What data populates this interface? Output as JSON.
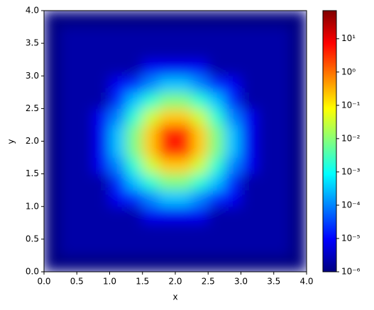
{
  "chart_data": {
    "type": "heatmap",
    "x_label": "x",
    "y_label": "y",
    "colormap": "jet",
    "color_scale": "log",
    "xlim": [
      0,
      4
    ],
    "ylim": [
      0,
      4
    ],
    "xticks": [
      {
        "value": 0,
        "label": "0.0"
      },
      0.5,
      {
        "value": 1,
        "label": "1.0"
      },
      1.5,
      {
        "value": 2,
        "label": "2.0"
      },
      2.5,
      {
        "value": 3,
        "label": "3.0"
      },
      3.5,
      {
        "value": 4,
        "label": "4.0"
      }
    ],
    "yticks": [
      {
        "value": 0,
        "label": "0.0"
      },
      0.5,
      {
        "value": 1,
        "label": "1.0"
      },
      1.5,
      {
        "value": 2,
        "label": "2.0"
      },
      2.5,
      {
        "value": 3,
        "label": "3.0"
      },
      3.5,
      {
        "value": 4,
        "label": "4.0"
      }
    ],
    "x": [
      0.125,
      0.375,
      0.625,
      0.875,
      1.125,
      1.375,
      1.625,
      1.875,
      2.125,
      2.375,
      2.625,
      2.875,
      3.125,
      3.375,
      3.625,
      3.875
    ],
    "y": [
      0.125,
      0.375,
      0.625,
      0.875,
      1.125,
      1.375,
      1.625,
      1.875,
      2.125,
      2.375,
      2.625,
      2.875,
      3.125,
      3.375,
      3.625,
      3.875
    ],
    "z": [
      [
        1e-06,
        1e-06,
        1e-06,
        1e-06,
        1e-06,
        1e-06,
        1e-06,
        1e-06,
        1e-06,
        1e-06,
        1e-06,
        1e-06,
        1e-06,
        1e-06,
        1e-06,
        1e-06
      ],
      [
        1e-06,
        2e-06,
        2e-06,
        2e-06,
        2e-06,
        2e-06,
        2e-06,
        2e-06,
        2e-06,
        2e-06,
        2e-06,
        2e-06,
        2e-06,
        2e-06,
        2e-06,
        1e-06
      ],
      [
        1e-06,
        2e-06,
        2e-06,
        2e-06,
        2e-06,
        2e-06,
        2e-06,
        2e-06,
        2e-06,
        2e-06,
        2e-06,
        2e-06,
        2e-06,
        2e-06,
        2e-06,
        1e-06
      ],
      [
        1e-06,
        2e-06,
        2e-06,
        2e-06,
        2e-06,
        2e-06,
        8e-06,
        8e-06,
        8e-06,
        8e-06,
        2e-06,
        2e-06,
        2e-06,
        2e-06,
        2e-06,
        1e-06
      ],
      [
        1e-06,
        2e-06,
        2e-06,
        2e-06,
        8e-06,
        2e-05,
        0.0001,
        0.0003,
        0.0003,
        0.0001,
        2e-05,
        8e-06,
        2e-06,
        2e-06,
        2e-06,
        1e-06
      ],
      [
        1e-06,
        2e-06,
        2e-06,
        2e-06,
        2e-05,
        0.0003,
        0.002,
        0.008,
        0.008,
        0.002,
        0.0003,
        2e-05,
        2e-06,
        2e-06,
        2e-06,
        1e-06
      ],
      [
        1e-06,
        2e-06,
        2e-06,
        8e-06,
        0.0001,
        0.002,
        0.03,
        0.2,
        0.2,
        0.03,
        0.002,
        0.0001,
        8e-06,
        2e-06,
        2e-06,
        1e-06
      ],
      [
        1e-06,
        2e-06,
        2e-06,
        8e-06,
        0.0003,
        0.008,
        0.2,
        4,
        4,
        0.2,
        0.008,
        0.0003,
        8e-06,
        2e-06,
        2e-06,
        1e-06
      ],
      [
        1e-06,
        2e-06,
        2e-06,
        8e-06,
        0.0003,
        0.008,
        0.2,
        4,
        4,
        0.2,
        0.008,
        0.0003,
        8e-06,
        2e-06,
        2e-06,
        1e-06
      ],
      [
        1e-06,
        2e-06,
        2e-06,
        8e-06,
        0.0001,
        0.002,
        0.03,
        0.2,
        0.2,
        0.03,
        0.002,
        0.0001,
        8e-06,
        2e-06,
        2e-06,
        1e-06
      ],
      [
        1e-06,
        2e-06,
        2e-06,
        2e-06,
        2e-05,
        0.0003,
        0.002,
        0.008,
        0.008,
        0.002,
        0.0003,
        2e-05,
        2e-06,
        2e-06,
        2e-06,
        1e-06
      ],
      [
        1e-06,
        2e-06,
        2e-06,
        2e-06,
        8e-06,
        2e-05,
        0.0001,
        0.0003,
        0.0003,
        0.0001,
        2e-05,
        8e-06,
        2e-06,
        2e-06,
        2e-06,
        1e-06
      ],
      [
        1e-06,
        2e-06,
        2e-06,
        2e-06,
        2e-06,
        2e-06,
        8e-06,
        8e-06,
        8e-06,
        8e-06,
        2e-06,
        2e-06,
        2e-06,
        2e-06,
        2e-06,
        1e-06
      ],
      [
        1e-06,
        2e-06,
        2e-06,
        2e-06,
        2e-06,
        2e-06,
        2e-06,
        2e-06,
        2e-06,
        2e-06,
        2e-06,
        2e-06,
        2e-06,
        2e-06,
        2e-06,
        1e-06
      ],
      [
        1e-06,
        2e-06,
        2e-06,
        2e-06,
        2e-06,
        2e-06,
        2e-06,
        2e-06,
        2e-06,
        2e-06,
        2e-06,
        2e-06,
        2e-06,
        2e-06,
        2e-06,
        1e-06
      ],
      [
        1e-06,
        1e-06,
        1e-06,
        1e-06,
        1e-06,
        1e-06,
        1e-06,
        1e-06,
        1e-06,
        1e-06,
        1e-06,
        1e-06,
        1e-06,
        1e-06,
        1e-06,
        1e-06
      ]
    ],
    "colorbar": {
      "lim": [
        1e-06,
        70
      ],
      "ticks": [
        {
          "value": 1e-06,
          "label": "10⁻⁶"
        },
        {
          "value": 1e-05,
          "label": "10⁻⁵"
        },
        {
          "value": 0.0001,
          "label": "10⁻⁴"
        },
        {
          "value": 0.001,
          "label": "10⁻³"
        },
        {
          "value": 0.01,
          "label": "10⁻²"
        },
        {
          "value": 0.1,
          "label": "10⁻¹"
        },
        {
          "value": 1,
          "label": "10⁰"
        },
        {
          "value": 10,
          "label": "10¹"
        }
      ]
    }
  }
}
